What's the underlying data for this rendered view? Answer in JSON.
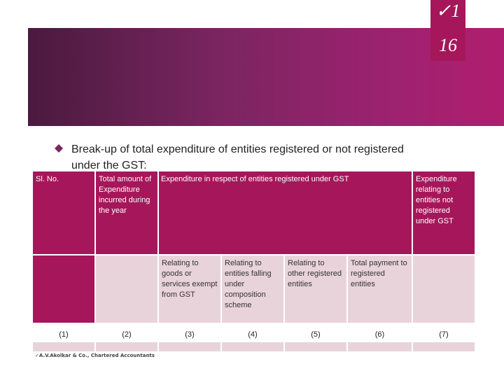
{
  "slide_number": {
    "check": "✓1",
    "page": "16"
  },
  "bullet": {
    "icon": "diamond-bullet-icon",
    "text": "Break-up of total expenditure of entities registered or not registered under the GST:"
  },
  "table": {
    "header": {
      "sl_no": "Sl. No.",
      "total_amount": "Total amount of Expenditure incurred during the year",
      "registered_group": "Expenditure in respect of entities registered under GST",
      "not_registered": "Expenditure relating to entities not registered under GST"
    },
    "subheaders": [
      "Relating to goods or services exempt from GST",
      "Relating to entities falling under composition scheme",
      "Relating to other registered entities",
      "Total payment to registered entities"
    ],
    "column_numbers": [
      "(1)",
      "(2)",
      "(3)",
      "(4)",
      "(5)",
      "(6)",
      "(7)"
    ]
  },
  "footer": "✓A.V.Akolkar & Co., Chartered Accountants",
  "colors": {
    "primary": "#a5175a",
    "light_row": "#e9d3da",
    "banner_dark": "#4a1a3e"
  }
}
